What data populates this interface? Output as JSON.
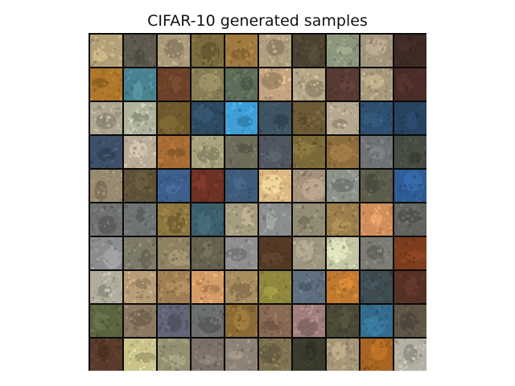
{
  "title": "CIFAR-10 generated samples",
  "grid": {
    "rows": 10,
    "cols": 10,
    "samples": [
      [
        "#b3a077",
        "#5e5a4e",
        "#ab9b7b",
        "#7b6c3e",
        "#a0793f",
        "#b09f7f",
        "#4d4232",
        "#8d957c",
        "#a2957d",
        "#3c2a24"
      ],
      [
        "#ae772a",
        "#4b8290",
        "#6b4229",
        "#877e57",
        "#5d6d58",
        "#c4a57f",
        "#b6a888",
        "#573a33",
        "#a99b7c",
        "#4a2d28"
      ],
      [
        "#aea690",
        "#b0b29c",
        "#6f5a2d",
        "#2e4a62",
        "#3fa0d8",
        "#3e5462",
        "#6d5a37",
        "#b6a890",
        "#2e4f6e",
        "#264360"
      ],
      [
        "#3e5068",
        "#b8ac98",
        "#a76c34",
        "#a8a37d",
        "#6e6b58",
        "#4f5660",
        "#7a6a38",
        "#8d6c3d",
        "#6f7275",
        "#474c42"
      ],
      [
        "#978a70",
        "#5d5238",
        "#3d5f8c",
        "#6e3225",
        "#3f5b7a",
        "#dcba86",
        "#a2907b",
        "#8d9289",
        "#5c5c4c",
        "#2f5c94"
      ],
      [
        "#707270",
        "#6f7373",
        "#8d7640",
        "#3c5e6b",
        "#a69c7e",
        "#8c8e8e",
        "#948d76",
        "#9c7f4c",
        "#d08e5c",
        "#62635e"
      ],
      [
        "#8d8c8e",
        "#7e7a68",
        "#8f8262",
        "#666250",
        "#8f8f8f",
        "#543a26",
        "#9d957f",
        "#c4c6a4",
        "#7c7c74",
        "#7c3c1e"
      ],
      [
        "#b1ad9c",
        "#b89e78",
        "#9f7e54",
        "#d49c66",
        "#a88d61",
        "#8e873c",
        "#5f6f7f",
        "#c07a30",
        "#3e4c52",
        "#573126"
      ],
      [
        "#5b6440",
        "#8d7a63",
        "#626575",
        "#6c6f6c",
        "#8b6b35",
        "#896a55",
        "#a07e7b",
        "#4a4937",
        "#336c8c",
        "#5f5647"
      ],
      [
        "#5b3c2c",
        "#cac48c",
        "#949072",
        "#7c7068",
        "#8f8377",
        "#7e7250",
        "#3b3b2c",
        "#a59677",
        "#a76422",
        "#b4b1a3"
      ]
    ]
  }
}
